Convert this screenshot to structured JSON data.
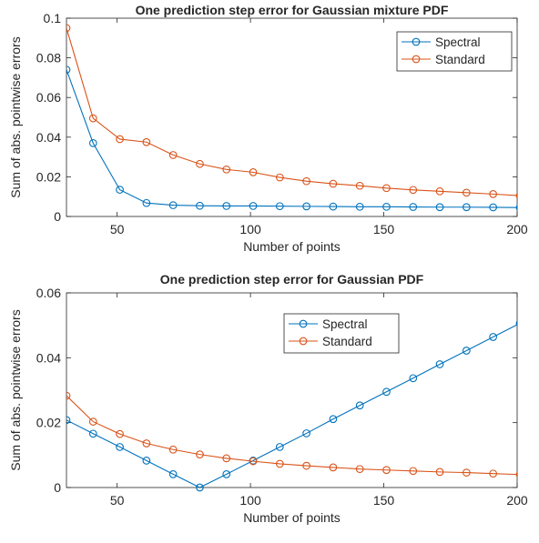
{
  "chart_data": [
    {
      "type": "line",
      "title": "One prediction step error for Gaussian mixture PDF",
      "xlabel": "Number of points",
      "ylabel": "Sum of abs. pointwise errors",
      "xlim": [
        31,
        200
      ],
      "ylim": [
        0,
        0.1
      ],
      "xticks": [
        50,
        100,
        150,
        200
      ],
      "yticks": [
        0,
        0.02,
        0.04,
        0.06,
        0.08,
        0.1
      ],
      "ytick_labels": [
        "0",
        "0.02",
        "0.04",
        "0.06",
        "0.08",
        "0.1"
      ],
      "grid": false,
      "legend_position": "top-right",
      "x": [
        31,
        41,
        51,
        61,
        71,
        81,
        91,
        101,
        111,
        121,
        131,
        141,
        151,
        161,
        171,
        181,
        191,
        201
      ],
      "series": [
        {
          "name": "Spectral",
          "color": "#0072BD",
          "values": [
            0.074,
            0.037,
            0.0135,
            0.0068,
            0.0057,
            0.0054,
            0.0053,
            0.0053,
            0.0052,
            0.0051,
            0.005,
            0.0049,
            0.0049,
            0.0048,
            0.0047,
            0.0047,
            0.0046,
            0.0045
          ]
        },
        {
          "name": "Standard",
          "color": "#D95319",
          "values": [
            0.095,
            0.0495,
            0.039,
            0.0375,
            0.031,
            0.0265,
            0.0237,
            0.0223,
            0.0197,
            0.0178,
            0.0165,
            0.0155,
            0.0143,
            0.0134,
            0.0127,
            0.012,
            0.0113,
            0.0105
          ]
        }
      ]
    },
    {
      "type": "line",
      "title": "One prediction step error for Gaussian PDF",
      "xlabel": "Number of points",
      "ylabel": "Sum of abs. pointwise errors",
      "xlim": [
        31,
        200
      ],
      "ylim": [
        0,
        0.06
      ],
      "xticks": [
        50,
        100,
        150,
        200
      ],
      "yticks": [
        0,
        0.02,
        0.04,
        0.06
      ],
      "ytick_labels": [
        "0",
        "0.02",
        "0.04",
        "0.06"
      ],
      "grid": false,
      "legend_position": "top-center",
      "x": [
        31,
        41,
        51,
        61,
        71,
        81,
        91,
        101,
        111,
        121,
        131,
        141,
        151,
        161,
        171,
        181,
        191,
        201
      ],
      "series": [
        {
          "name": "Spectral",
          "color": "#0072BD",
          "values": [
            0.0208,
            0.0166,
            0.0125,
            0.0083,
            0.0041,
            0.0,
            0.0041,
            0.0083,
            0.0125,
            0.0167,
            0.0211,
            0.0253,
            0.0295,
            0.0337,
            0.038,
            0.0422,
            0.0464,
            0.0506
          ]
        },
        {
          "name": "Standard",
          "color": "#D95319",
          "values": [
            0.0283,
            0.0203,
            0.0165,
            0.0136,
            0.0117,
            0.0102,
            0.009,
            0.0081,
            0.0073,
            0.0067,
            0.0062,
            0.0057,
            0.0054,
            0.0051,
            0.0048,
            0.0046,
            0.0043,
            0.004
          ]
        }
      ]
    }
  ]
}
